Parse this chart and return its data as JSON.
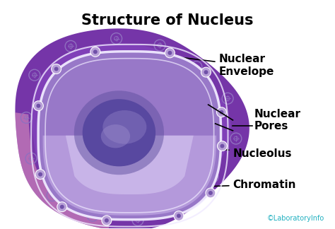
{
  "title": "Structure of Nucleus",
  "title_fontsize": 15,
  "title_fontweight": "bold",
  "background_color": "#ffffff",
  "outer_nucleus_color_main": "#7b3fa8",
  "outer_nucleus_color_dark": "#5a2d82",
  "outer_nucleus_color_light": "#9060c8",
  "nucleoplasm_color": "#b090d8",
  "nucleoplasm_color_light": "#d0b8f0",
  "nucleolus_color_outer": "#5a4090",
  "nucleolus_color_inner": "#7870a8",
  "nucleolus_color_highlight": "#a090c8",
  "envelope_line_color": "#e8e0f8",
  "pore_color": "#c0a8e0",
  "pore_inner_color": "#8060a8",
  "label_fontsize": 11,
  "label_fontweight": "bold",
  "watermark_text": "©LaboratoryInfo",
  "watermark_color": "#20b0c0",
  "watermark_fontsize": 7,
  "labels": {
    "nuclear_envelope": "Nuclear\nEnvelope",
    "nuclear_pores": "Nuclear\nPores",
    "nucleolus": "Nucleolus",
    "chromatin": "Chromatin"
  }
}
